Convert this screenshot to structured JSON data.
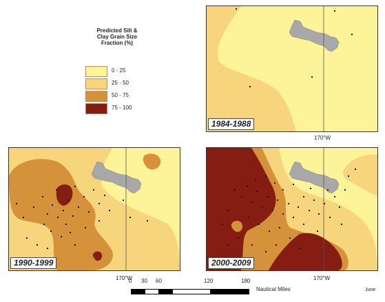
{
  "legend": {
    "title": "Predicted Silt &\nClay Grain Size\nFraction (%)",
    "classes": [
      {
        "label": "0 - 25",
        "color": "#fdf49a"
      },
      {
        "label": "25 - 50",
        "color": "#f7d57c"
      },
      {
        "label": "50 - 75",
        "color": "#d6923a"
      },
      {
        "label": "75 - 100",
        "color": "#861d13"
      }
    ]
  },
  "panels": [
    {
      "id": "1984-1988",
      "label": "1984-1988",
      "lon_label": "170°W"
    },
    {
      "id": "1990-1999",
      "label": "1990-1999",
      "lon_label": "170°W"
    },
    {
      "id": "2000-2009",
      "label": "2000-2009",
      "lon_label": "170°W"
    }
  ],
  "scale_bar": {
    "ticks": [
      "0",
      "30",
      "60",
      "120",
      "180"
    ],
    "unit": "Nautical Miles"
  },
  "month_label": "June",
  "colors": {
    "land": "#a8a8a8",
    "station": "#111111",
    "meridian": "#555555"
  }
}
